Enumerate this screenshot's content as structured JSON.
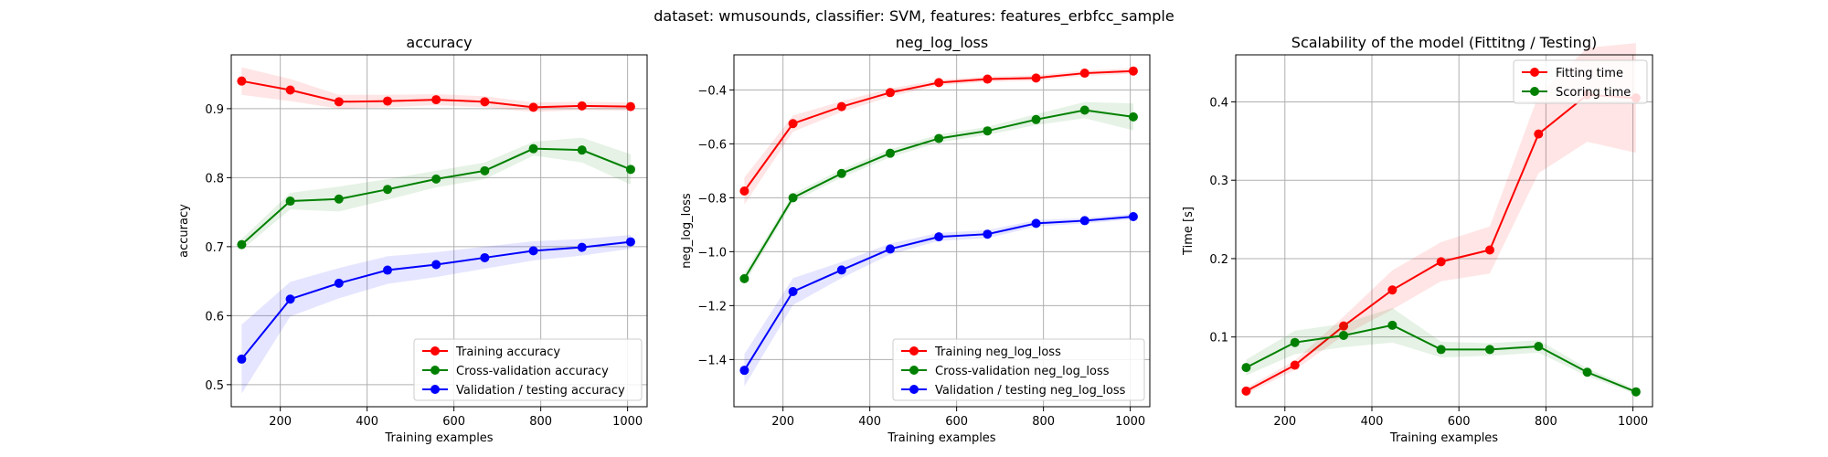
{
  "figure": {
    "suptitle": "dataset: wmusounds, classifier: SVM, features: features_erbfcc_sample"
  },
  "chart_data": [
    {
      "type": "line",
      "title": "accuracy",
      "xlabel": "Training examples",
      "ylabel": "accuracy",
      "xlim": [
        87,
        1045
      ],
      "ylim": [
        0.468,
        0.978
      ],
      "xticks": [
        200,
        400,
        600,
        800,
        1000
      ],
      "yticks": [
        0.5,
        0.6,
        0.7,
        0.8,
        0.9
      ],
      "xtick_labels": [
        "200",
        "400",
        "600",
        "800",
        "1000"
      ],
      "ytick_labels": [
        "0.5",
        "0.6",
        "0.7",
        "0.8",
        "0.9"
      ],
      "grid": true,
      "legend_position": "lower-right",
      "x": [
        111,
        223,
        335,
        447,
        559,
        671,
        783,
        895,
        1007
      ],
      "series": [
        {
          "name": "Training accuracy",
          "color": "#ff0000",
          "values": [
            0.94,
            0.927,
            0.91,
            0.911,
            0.913,
            0.91,
            0.902,
            0.904,
            0.903
          ],
          "band": [
            0.02,
            0.016,
            0.01,
            0.009,
            0.008,
            0.008,
            0.007,
            0.006,
            0.006
          ]
        },
        {
          "name": "Cross-validation accuracy",
          "color": "#008000",
          "values": [
            0.703,
            0.766,
            0.769,
            0.783,
            0.798,
            0.81,
            0.842,
            0.84,
            0.812
          ],
          "band": [
            0.008,
            0.012,
            0.018,
            0.015,
            0.012,
            0.012,
            0.01,
            0.018,
            0.022
          ]
        },
        {
          "name": "Validation / testing accuracy",
          "color": "#0000ff",
          "values": [
            0.537,
            0.624,
            0.647,
            0.666,
            0.674,
            0.684,
            0.694,
            0.699,
            0.707
          ],
          "band": [
            0.05,
            0.025,
            0.022,
            0.02,
            0.018,
            0.016,
            0.014,
            0.012,
            0.01
          ]
        }
      ]
    },
    {
      "type": "line",
      "title": "neg_log_loss",
      "xlabel": "Training examples",
      "ylabel": "neg_log_loss",
      "xlim": [
        87,
        1045
      ],
      "ylim": [
        -1.575,
        -0.27
      ],
      "xticks": [
        200,
        400,
        600,
        800,
        1000
      ],
      "yticks": [
        -1.4,
        -1.2,
        -1.0,
        -0.8,
        -0.6,
        -0.4
      ],
      "xtick_labels": [
        "200",
        "400",
        "600",
        "800",
        "1000"
      ],
      "ytick_labels": [
        "−1.4",
        "−1.2",
        "−1.0",
        "−0.8",
        "−0.6",
        "−0.4"
      ],
      "grid": true,
      "legend_position": "lower-right",
      "x": [
        111,
        223,
        335,
        447,
        559,
        671,
        783,
        895,
        1007
      ],
      "series": [
        {
          "name": "Training neg_log_loss",
          "color": "#ff0000",
          "values": [
            -0.775,
            -0.525,
            -0.462,
            -0.41,
            -0.373,
            -0.36,
            -0.356,
            -0.338,
            -0.33
          ],
          "band": [
            0.05,
            0.03,
            0.02,
            0.015,
            0.01,
            0.01,
            0.01,
            0.01,
            0.01
          ]
        },
        {
          "name": "Cross-validation neg_log_loss",
          "color": "#008000",
          "values": [
            -1.1,
            -0.8,
            -0.71,
            -0.635,
            -0.58,
            -0.552,
            -0.51,
            -0.475,
            -0.5
          ],
          "band": [
            0.02,
            0.015,
            0.015,
            0.015,
            0.015,
            0.015,
            0.02,
            0.03,
            0.05
          ]
        },
        {
          "name": "Validation / testing neg_log_loss",
          "color": "#0000ff",
          "values": [
            -1.44,
            -1.148,
            -1.068,
            -0.99,
            -0.945,
            -0.935,
            -0.895,
            -0.885,
            -0.87
          ],
          "band": [
            0.06,
            0.05,
            0.03,
            0.02,
            0.015,
            0.015,
            0.012,
            0.01,
            0.01
          ]
        }
      ]
    },
    {
      "type": "line",
      "title": "Scalability of the model (Fittitng / Testing)",
      "xlabel": "Training examples",
      "ylabel": "Time [s]",
      "xlim": [
        87,
        1045
      ],
      "ylim": [
        0.011,
        0.46
      ],
      "xticks": [
        200,
        400,
        600,
        800,
        1000
      ],
      "yticks": [
        0.1,
        0.2,
        0.3,
        0.4
      ],
      "xtick_labels": [
        "200",
        "400",
        "600",
        "800",
        "1000"
      ],
      "ytick_labels": [
        "0.1",
        "0.2",
        "0.3",
        "0.4"
      ],
      "grid": true,
      "legend_position": "top-right",
      "x": [
        111,
        223,
        335,
        447,
        559,
        671,
        783,
        895,
        1007
      ],
      "series": [
        {
          "name": "Fitting time",
          "color": "#ff0000",
          "values": [
            0.031,
            0.064,
            0.114,
            0.16,
            0.196,
            0.211,
            0.359,
            0.409,
            0.405
          ],
          "band": [
            0.004,
            0.006,
            0.012,
            0.025,
            0.025,
            0.03,
            0.05,
            0.06,
            0.07
          ]
        },
        {
          "name": "Scoring time",
          "color": "#008000",
          "values": [
            0.061,
            0.093,
            0.102,
            0.115,
            0.084,
            0.084,
            0.088,
            0.055,
            0.03
          ],
          "band": [
            0.01,
            0.015,
            0.015,
            0.022,
            0.01,
            0.008,
            0.008,
            0.005,
            0.003
          ]
        }
      ]
    }
  ]
}
